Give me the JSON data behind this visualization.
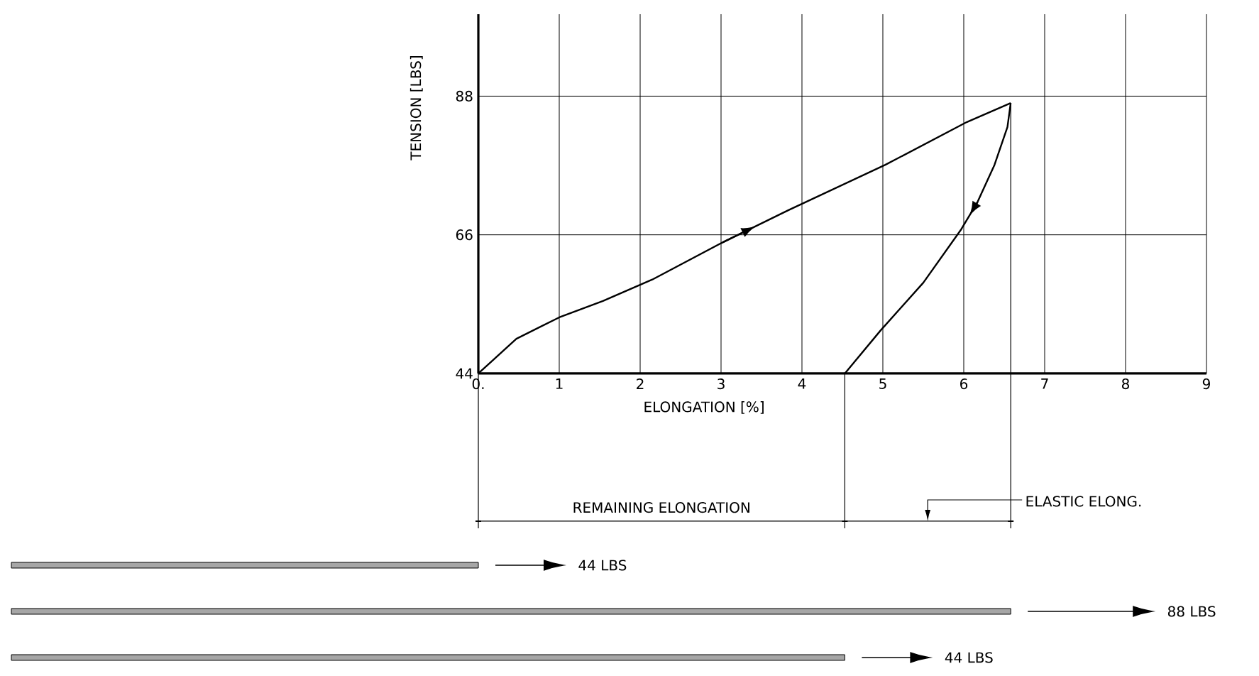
{
  "chart_data": {
    "type": "line",
    "xlabel": "ELONGATION [%]",
    "ylabel": "TENSION [LBS]",
    "xlim": [
      0,
      9
    ],
    "ylim": [
      44,
      101
    ],
    "xticks": [
      {
        "value": 0,
        "label": "0."
      },
      1,
      2,
      3,
      4,
      5,
      6,
      7,
      8,
      9
    ],
    "yticks": [
      44,
      66,
      88
    ],
    "grid": true,
    "series": [
      {
        "color": "#000000",
        "x": [
          0,
          0.47,
          1.0,
          1.54,
          2.15,
          3.02,
          3.83,
          5.03,
          6.04,
          6.58
        ],
        "values": [
          44,
          49.5,
          52.9,
          55.5,
          58.9,
          64.8,
          69.9,
          77.1,
          83.9,
          86.9
        ]
      },
      {
        "color": "#000000",
        "x": [
          6.58,
          6.54,
          6.38,
          6.17,
          5.97,
          5.5,
          4.97,
          4.53
        ],
        "values": [
          86.9,
          83.1,
          77.1,
          71.2,
          66.9,
          58.4,
          50.8,
          44
        ]
      }
    ],
    "annotations": [
      "REMAINING ELONGATION",
      "ELASTIC ELONG.",
      "44 LBS",
      "88 LBS",
      "44 LBS"
    ]
  }
}
